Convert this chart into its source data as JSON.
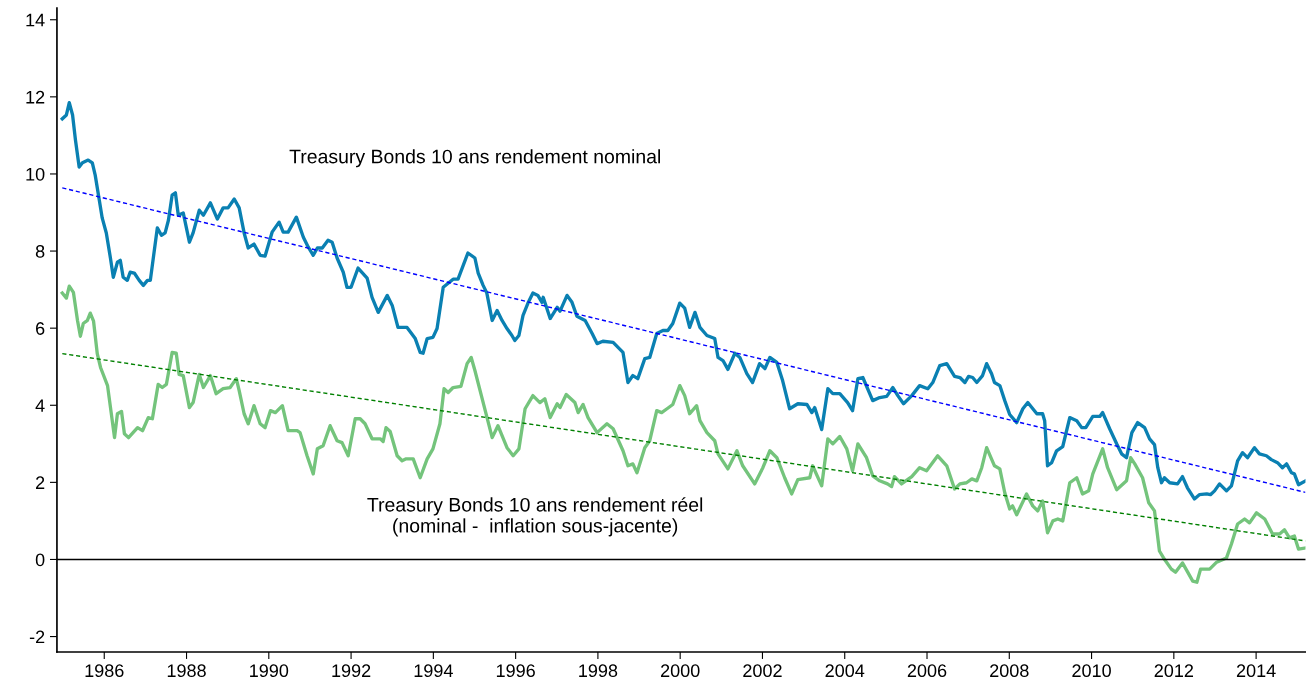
{
  "chart_data": {
    "type": "line",
    "xlim": [
      1984.85,
      2015.2
    ],
    "ylim": [
      -2.4,
      14.3
    ],
    "xticks": [
      1986,
      1988,
      1990,
      1992,
      1994,
      1996,
      1998,
      2000,
      2002,
      2004,
      2006,
      2008,
      2010,
      2012,
      2014
    ],
    "yticks": [
      {
        "value": -2,
        "label": "-2"
      },
      0,
      2,
      4,
      6,
      8,
      10,
      12,
      14
    ],
    "grid": false,
    "legend": false,
    "marker": "none",
    "ref_lines": [
      {
        "axis": "y",
        "value": 0,
        "label": null,
        "color": "#000000",
        "line_style": "solid"
      }
    ],
    "annotations": [
      "Treasury Bonds 10 ans rendement nominal",
      "Treasury Bonds 10 ans rendement réel\n(nominal -  inflation sous-jacente)"
    ],
    "series": [
      {
        "color": "#0a80b2",
        "line_style": "solid",
        "x": [
          1984.98,
          1985.08,
          1985.15,
          1985.23,
          1985.3,
          1985.39,
          1985.47,
          1985.61,
          1985.71,
          1985.78,
          1985.88,
          1985.95,
          1986.05,
          1986.15,
          1986.22,
          1986.32,
          1986.39,
          1986.46,
          1986.56,
          1986.63,
          1986.73,
          1986.85,
          1986.95,
          1987.05,
          1987.12,
          1987.29,
          1987.39,
          1987.48,
          1987.56,
          1987.65,
          1987.73,
          1987.8,
          1987.92,
          1988.07,
          1988.16,
          1988.31,
          1988.41,
          1988.58,
          1988.75,
          1988.89,
          1989.01,
          1989.16,
          1989.28,
          1989.4,
          1989.5,
          1989.64,
          1989.79,
          1989.91,
          1990.08,
          1990.25,
          1990.35,
          1990.47,
          1990.67,
          1990.84,
          1990.96,
          1991.08,
          1991.18,
          1991.3,
          1991.44,
          1991.54,
          1991.66,
          1991.81,
          1991.9,
          1992.0,
          1992.17,
          1992.39,
          1992.51,
          1992.66,
          1992.88,
          1993.0,
          1993.14,
          1993.36,
          1993.56,
          1993.68,
          1993.75,
          1993.85,
          1993.99,
          1994.09,
          1994.24,
          1994.48,
          1994.6,
          1994.84,
          1995.01,
          1995.09,
          1995.21,
          1995.3,
          1995.43,
          1995.55,
          1995.67,
          1995.79,
          1995.91,
          1995.98,
          1996.08,
          1996.18,
          1996.3,
          1996.42,
          1996.54,
          1996.64,
          1996.67,
          1996.84,
          1997.01,
          1997.08,
          1997.25,
          1997.37,
          1997.49,
          1997.69,
          1997.86,
          1997.98,
          1998.12,
          1998.37,
          1998.61,
          1998.73,
          1998.85,
          1998.97,
          1999.14,
          1999.26,
          1999.43,
          1999.58,
          1999.7,
          1999.82,
          1999.99,
          2000.11,
          2000.23,
          2000.36,
          2000.48,
          2000.65,
          2000.84,
          2000.92,
          2001.04,
          2001.16,
          2001.33,
          2001.45,
          2001.62,
          2001.76,
          2001.93,
          2002.06,
          2002.18,
          2002.35,
          2002.49,
          2002.66,
          2002.86,
          2003.08,
          2003.2,
          2003.27,
          2003.44,
          2003.59,
          2003.71,
          2003.88,
          2004.07,
          2004.19,
          2004.32,
          2004.44,
          2004.68,
          2004.85,
          2005.02,
          2005.17,
          2005.29,
          2005.43,
          2005.63,
          2005.82,
          2006.02,
          2006.14,
          2006.31,
          2006.48,
          2006.67,
          2006.8,
          2006.92,
          2007.01,
          2007.11,
          2007.21,
          2007.35,
          2007.45,
          2007.57,
          2007.64,
          2007.77,
          2007.89,
          2008.01,
          2008.18,
          2008.33,
          2008.45,
          2008.67,
          2008.81,
          2008.86,
          2008.93,
          2009.03,
          2009.15,
          2009.3,
          2009.47,
          2009.64,
          2009.76,
          2009.86,
          2010.03,
          2010.2,
          2010.27,
          2010.44,
          2010.61,
          2010.73,
          2010.85,
          2010.98,
          2011.12,
          2011.29,
          2011.41,
          2011.53,
          2011.61,
          2011.7,
          2011.77,
          2011.9,
          2012.09,
          2012.21,
          2012.33,
          2012.5,
          2012.62,
          2012.8,
          2012.89,
          2012.99,
          2013.11,
          2013.28,
          2013.4,
          2013.55,
          2013.67,
          2013.79,
          2013.96,
          2014.08,
          2014.25,
          2014.37,
          2014.52,
          2014.64,
          2014.74,
          2014.86,
          2014.93,
          2015.03,
          2015.2
        ],
        "values": [
          11.43,
          11.53,
          11.85,
          11.53,
          10.88,
          10.18,
          10.29,
          10.36,
          10.29,
          9.97,
          9.32,
          8.86,
          8.47,
          7.82,
          7.32,
          7.71,
          7.76,
          7.32,
          7.24,
          7.45,
          7.43,
          7.24,
          7.11,
          7.24,
          7.24,
          8.6,
          8.41,
          8.47,
          8.8,
          9.45,
          9.51,
          8.93,
          8.99,
          8.23,
          8.47,
          9.06,
          8.93,
          9.25,
          8.83,
          9.12,
          9.12,
          9.35,
          9.12,
          8.47,
          8.08,
          8.18,
          7.89,
          7.87,
          8.49,
          8.75,
          8.49,
          8.49,
          8.88,
          8.36,
          8.1,
          7.89,
          8.08,
          8.08,
          8.28,
          8.23,
          7.82,
          7.45,
          7.06,
          7.06,
          7.56,
          7.3,
          6.8,
          6.41,
          6.85,
          6.59,
          6.02,
          6.02,
          5.73,
          5.37,
          5.35,
          5.73,
          5.76,
          5.99,
          7.06,
          7.27,
          7.27,
          7.95,
          7.82,
          7.43,
          7.11,
          6.91,
          6.2,
          6.46,
          6.2,
          5.99,
          5.81,
          5.68,
          5.81,
          6.33,
          6.65,
          6.91,
          6.85,
          6.67,
          6.8,
          6.25,
          6.54,
          6.44,
          6.85,
          6.67,
          6.31,
          6.2,
          5.86,
          5.6,
          5.66,
          5.63,
          5.37,
          4.59,
          4.77,
          4.69,
          5.21,
          5.24,
          5.86,
          5.94,
          5.94,
          6.12,
          6.65,
          6.52,
          6.02,
          6.41,
          6.02,
          5.81,
          5.73,
          5.24,
          5.16,
          4.93,
          5.35,
          5.24,
          4.82,
          4.59,
          5.08,
          4.95,
          5.24,
          5.11,
          4.64,
          3.91,
          4.04,
          4.02,
          3.81,
          3.94,
          3.37,
          4.43,
          4.3,
          4.3,
          4.07,
          3.86,
          4.69,
          4.72,
          4.12,
          4.2,
          4.23,
          4.46,
          4.25,
          4.04,
          4.25,
          4.51,
          4.43,
          4.59,
          5.03,
          5.08,
          4.75,
          4.72,
          4.59,
          4.75,
          4.72,
          4.59,
          4.77,
          5.08,
          4.82,
          4.59,
          4.51,
          4.12,
          3.76,
          3.55,
          3.91,
          4.07,
          3.78,
          3.78,
          3.6,
          2.43,
          2.51,
          2.82,
          2.93,
          3.68,
          3.6,
          3.42,
          3.42,
          3.71,
          3.71,
          3.81,
          3.39,
          3.0,
          2.74,
          2.64,
          3.29,
          3.55,
          3.42,
          3.13,
          2.98,
          2.38,
          1.99,
          2.12,
          1.99,
          1.96,
          2.15,
          1.86,
          1.57,
          1.68,
          1.7,
          1.68,
          1.78,
          1.96,
          1.78,
          1.91,
          2.56,
          2.77,
          2.64,
          2.9,
          2.74,
          2.69,
          2.59,
          2.51,
          2.38,
          2.48,
          2.25,
          2.22,
          1.94,
          2.04
        ]
      },
      {
        "color": "#74c47c",
        "line_style": "solid",
        "x": [
          1984.98,
          1985.08,
          1985.15,
          1985.25,
          1985.35,
          1985.42,
          1985.49,
          1985.59,
          1985.66,
          1985.74,
          1985.83,
          1985.91,
          1986.08,
          1986.25,
          1986.32,
          1986.42,
          1986.49,
          1986.59,
          1986.81,
          1986.93,
          1987.07,
          1987.17,
          1987.31,
          1987.41,
          1987.51,
          1987.65,
          1987.75,
          1987.82,
          1987.92,
          1988.07,
          1988.16,
          1988.31,
          1988.41,
          1988.58,
          1988.72,
          1988.89,
          1989.06,
          1989.21,
          1989.28,
          1989.4,
          1989.5,
          1989.64,
          1989.79,
          1989.91,
          1990.04,
          1990.16,
          1990.33,
          1990.47,
          1990.69,
          1990.76,
          1990.93,
          1991.08,
          1991.18,
          1991.32,
          1991.49,
          1991.66,
          1991.78,
          1991.93,
          1992.1,
          1992.22,
          1992.34,
          1992.51,
          1992.71,
          1992.78,
          1992.85,
          1992.95,
          1993.12,
          1993.24,
          1993.34,
          1993.51,
          1993.68,
          1993.85,
          1993.99,
          1994.16,
          1994.26,
          1994.36,
          1994.48,
          1994.67,
          1994.82,
          1994.92,
          1995.01,
          1995.18,
          1995.43,
          1995.57,
          1995.79,
          1995.94,
          1996.08,
          1996.23,
          1996.42,
          1996.59,
          1996.71,
          1996.84,
          1997.01,
          1997.08,
          1997.23,
          1997.44,
          1997.52,
          1997.64,
          1997.76,
          1997.98,
          1998.22,
          1998.37,
          1998.61,
          1998.73,
          1998.85,
          1998.95,
          1999.14,
          1999.26,
          1999.43,
          1999.55,
          1999.68,
          1999.82,
          1999.99,
          2000.11,
          2000.23,
          2000.4,
          2000.48,
          2000.65,
          2000.84,
          2000.92,
          2001.16,
          2001.38,
          2001.52,
          2001.81,
          2002.01,
          2002.18,
          2002.35,
          2002.54,
          2002.71,
          2002.86,
          2003.15,
          2003.22,
          2003.44,
          2003.59,
          2003.71,
          2003.88,
          2004.05,
          2004.19,
          2004.32,
          2004.53,
          2004.68,
          2004.85,
          2005.04,
          2005.14,
          2005.21,
          2005.38,
          2005.63,
          2005.82,
          2005.99,
          2006.26,
          2006.48,
          2006.67,
          2006.8,
          2006.96,
          2007.09,
          2007.21,
          2007.33,
          2007.45,
          2007.64,
          2007.77,
          2007.89,
          2008.01,
          2008.08,
          2008.18,
          2008.42,
          2008.57,
          2008.69,
          2008.81,
          2008.93,
          2009.06,
          2009.18,
          2009.3,
          2009.47,
          2009.64,
          2009.78,
          2009.93,
          2010.03,
          2010.27,
          2010.39,
          2010.61,
          2010.85,
          2010.95,
          2011.05,
          2011.24,
          2011.39,
          2011.53,
          2011.65,
          2011.75,
          2011.94,
          2012.04,
          2012.21,
          2012.46,
          2012.56,
          2012.65,
          2012.87,
          2013.04,
          2013.28,
          2013.4,
          2013.55,
          2013.72,
          2013.84,
          2014.01,
          2014.21,
          2014.4,
          2014.57,
          2014.69,
          2014.81,
          2014.93,
          2015.03,
          2015.2
        ],
        "values": [
          6.91,
          6.78,
          7.09,
          6.93,
          6.2,
          5.79,
          6.12,
          6.2,
          6.39,
          6.18,
          5.34,
          4.98,
          4.51,
          3.16,
          3.78,
          3.84,
          3.26,
          3.16,
          3.42,
          3.34,
          3.68,
          3.65,
          4.54,
          4.46,
          4.54,
          5.37,
          5.35,
          4.8,
          4.77,
          3.94,
          4.07,
          4.8,
          4.46,
          4.77,
          4.3,
          4.43,
          4.46,
          4.69,
          4.38,
          3.78,
          3.52,
          3.99,
          3.52,
          3.42,
          3.86,
          3.81,
          3.99,
          3.34,
          3.34,
          3.29,
          2.69,
          2.22,
          2.87,
          2.95,
          3.47,
          3.08,
          3.03,
          2.69,
          3.65,
          3.65,
          3.52,
          3.13,
          3.13,
          3.06,
          3.42,
          3.32,
          2.69,
          2.56,
          2.61,
          2.61,
          2.12,
          2.61,
          2.87,
          3.52,
          4.43,
          4.33,
          4.46,
          4.49,
          5.08,
          5.24,
          4.9,
          4.2,
          3.16,
          3.47,
          2.9,
          2.69,
          2.87,
          3.91,
          4.25,
          4.07,
          4.17,
          3.68,
          4.04,
          3.94,
          4.28,
          4.07,
          3.81,
          4.02,
          3.68,
          3.29,
          3.52,
          3.39,
          2.82,
          2.43,
          2.48,
          2.25,
          2.9,
          3.08,
          3.86,
          3.81,
          3.91,
          4.02,
          4.51,
          4.25,
          3.78,
          3.99,
          3.6,
          3.29,
          3.08,
          2.74,
          2.35,
          2.82,
          2.43,
          1.96,
          2.38,
          2.82,
          2.64,
          2.12,
          1.7,
          2.07,
          2.12,
          2.43,
          1.91,
          3.13,
          3.0,
          3.19,
          2.87,
          2.3,
          3.0,
          2.64,
          2.17,
          2.04,
          1.96,
          1.89,
          2.15,
          1.96,
          2.15,
          2.38,
          2.3,
          2.69,
          2.43,
          1.83,
          1.96,
          1.99,
          2.09,
          2.04,
          2.38,
          2.9,
          2.43,
          2.35,
          1.73,
          1.31,
          1.39,
          1.16,
          1.7,
          1.39,
          1.26,
          1.52,
          0.69,
          1.0,
          1.05,
          1.0,
          1.99,
          2.12,
          1.7,
          1.78,
          2.22,
          2.87,
          2.38,
          1.81,
          2.04,
          2.64,
          2.48,
          2.12,
          1.47,
          1.26,
          0.22,
          0.04,
          -0.25,
          -0.33,
          -0.09,
          -0.56,
          -0.59,
          -0.25,
          -0.25,
          -0.07,
          0.04,
          0.4,
          0.92,
          1.05,
          0.95,
          1.21,
          1.05,
          0.66,
          0.66,
          0.77,
          0.56,
          0.61,
          0.27,
          0.3
        ]
      },
      {
        "color": "#0000ff",
        "line_style": "dashed",
        "x": [
          1984.98,
          2015.2
        ],
        "values": [
          9.64,
          1.74
        ]
      },
      {
        "color": "#008000",
        "line_style": "dashed",
        "x": [
          1984.98,
          2015.2
        ],
        "values": [
          5.34,
          0.48
        ]
      }
    ]
  }
}
